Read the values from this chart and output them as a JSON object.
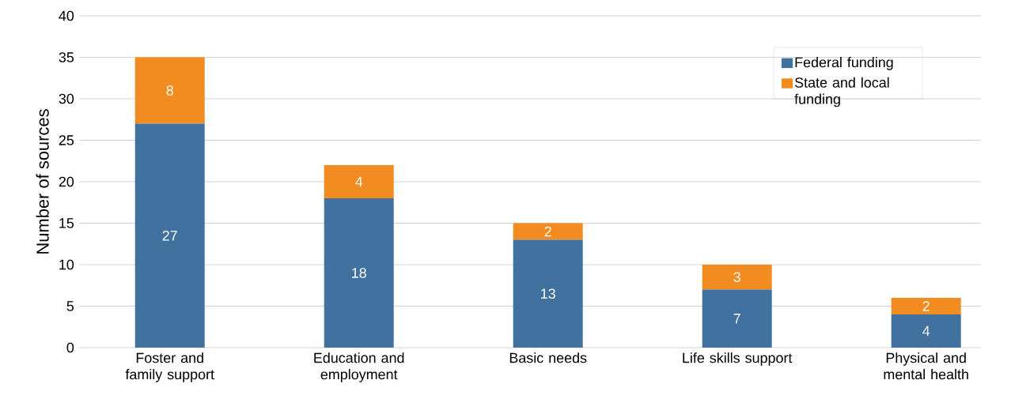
{
  "chart_data": {
    "type": "bar",
    "stacked": true,
    "ylabel": "Number of sources",
    "categories": [
      "Foster and family support",
      "Education and employment",
      "Basic needs",
      "Life skills support",
      "Physical and mental health"
    ],
    "series": [
      {
        "name": "Federal funding",
        "color": "#41729f",
        "values": [
          27,
          18,
          13,
          7,
          4
        ]
      },
      {
        "name": "State and local funding",
        "color": "#f28b20",
        "values": [
          8,
          4,
          2,
          3,
          2
        ]
      }
    ],
    "ylim": [
      0,
      40
    ],
    "yticks": [
      0,
      5,
      10,
      15,
      20,
      25,
      30,
      35,
      40
    ],
    "grid": "y",
    "legend": "top right",
    "data_labels": true
  }
}
